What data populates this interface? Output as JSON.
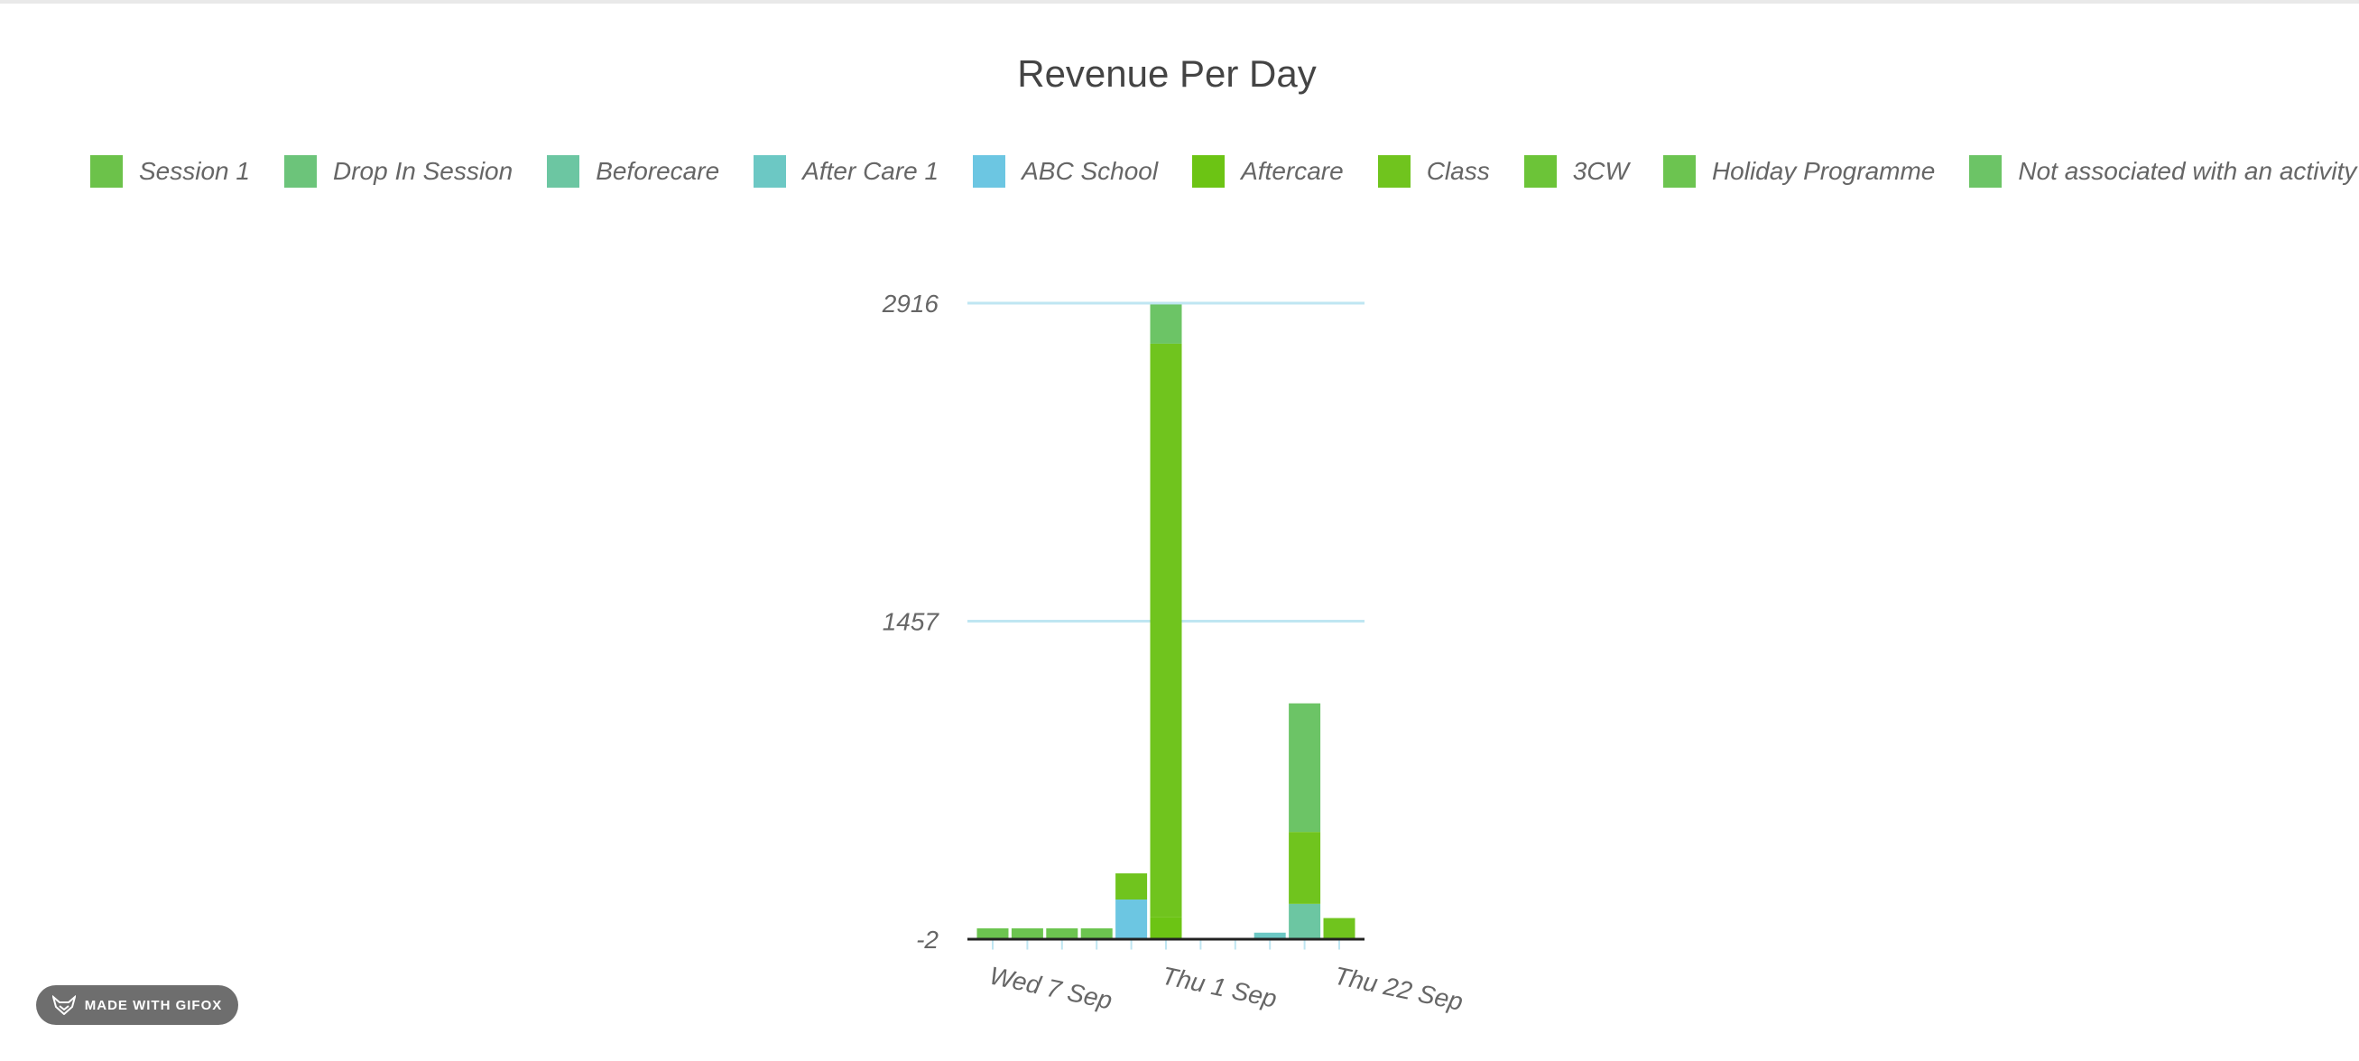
{
  "chart_data": {
    "type": "bar",
    "stacked": true,
    "title": "Revenue Per Day",
    "legend_position": "top",
    "y_ticks": [
      2916,
      1457,
      -2
    ],
    "ylim": [
      -2,
      2916
    ],
    "x_labels": [
      "Wed 7 Sep",
      "Thu 1 Sep",
      "Thu 22 Sep"
    ],
    "n_bars": 11,
    "series": [
      {
        "name": "Session 1",
        "color": "#6cc24a",
        "values": [
          0,
          0,
          0,
          0,
          0,
          0,
          0,
          0,
          0,
          0,
          0
        ]
      },
      {
        "name": "Drop In Session",
        "color": "#6cc47a",
        "values": [
          0,
          0,
          0,
          0,
          0,
          0,
          0,
          0,
          0,
          0,
          0
        ]
      },
      {
        "name": "Beforecare",
        "color": "#6cc6a2",
        "values": [
          0,
          0,
          0,
          0,
          0,
          0,
          0,
          0,
          0,
          160,
          0
        ]
      },
      {
        "name": "After Care 1",
        "color": "#6cc8c4",
        "values": [
          0,
          0,
          0,
          0,
          0,
          0,
          0,
          0,
          28,
          0,
          0
        ]
      },
      {
        "name": "ABC School",
        "color": "#6cc6e2",
        "values": [
          0,
          0,
          0,
          0,
          180,
          0,
          0,
          0,
          0,
          0,
          0
        ]
      },
      {
        "name": "Aftercare",
        "color": "#6cc414",
        "values": [
          0,
          0,
          0,
          0,
          0,
          100,
          0,
          0,
          0,
          0,
          0
        ]
      },
      {
        "name": "Class",
        "color": "#70c41e",
        "values": [
          0,
          0,
          0,
          0,
          120,
          2630,
          0,
          0,
          0,
          330,
          95
        ]
      },
      {
        "name": "3CW",
        "color": "#6cc438",
        "values": [
          0,
          0,
          0,
          0,
          0,
          0,
          0,
          0,
          0,
          0,
          0
        ]
      },
      {
        "name": "Holiday Programme",
        "color": "#6cc450",
        "values": [
          48,
          48,
          48,
          48,
          0,
          0,
          0,
          0,
          0,
          0,
          0
        ]
      },
      {
        "name": "Not associated with an activity",
        "color": "#6cc466",
        "values": [
          0,
          0,
          0,
          0,
          0,
          180,
          0,
          0,
          0,
          590,
          0
        ]
      }
    ]
  },
  "badge": {
    "label": "MADE WITH GIFOX"
  }
}
